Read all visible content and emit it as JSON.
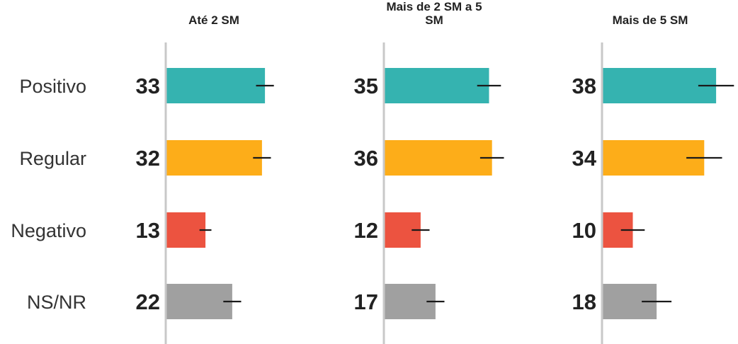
{
  "chart_data": {
    "type": "bar",
    "orientation": "horizontal",
    "categories": [
      "Positivo",
      "Regular",
      "Negativo",
      "NS/NR"
    ],
    "category_colors": [
      "#35b3b0",
      "#fdad19",
      "#ec5340",
      "#a0a0a0"
    ],
    "axis_color": "#c8c8c8",
    "error_bar_color": "#1a1a1a",
    "error_margin_note": "approximate ± values shown as black error bars",
    "panels": [
      {
        "title_lines": [
          "Até 2 SM"
        ],
        "values": [
          33,
          32,
          13,
          22
        ],
        "errors": [
          3,
          3,
          2,
          3
        ]
      },
      {
        "title_lines": [
          "Mais de 2 SM a 5",
          "SM"
        ],
        "values": [
          35,
          36,
          12,
          17
        ],
        "errors": [
          4,
          4,
          3,
          3
        ]
      },
      {
        "title_lines": [
          "Mais de 5 SM"
        ],
        "values": [
          38,
          34,
          10,
          18
        ],
        "errors": [
          6,
          6,
          4,
          5
        ]
      }
    ],
    "xlim": [
      0,
      50
    ],
    "grid": false,
    "legend": "none"
  }
}
